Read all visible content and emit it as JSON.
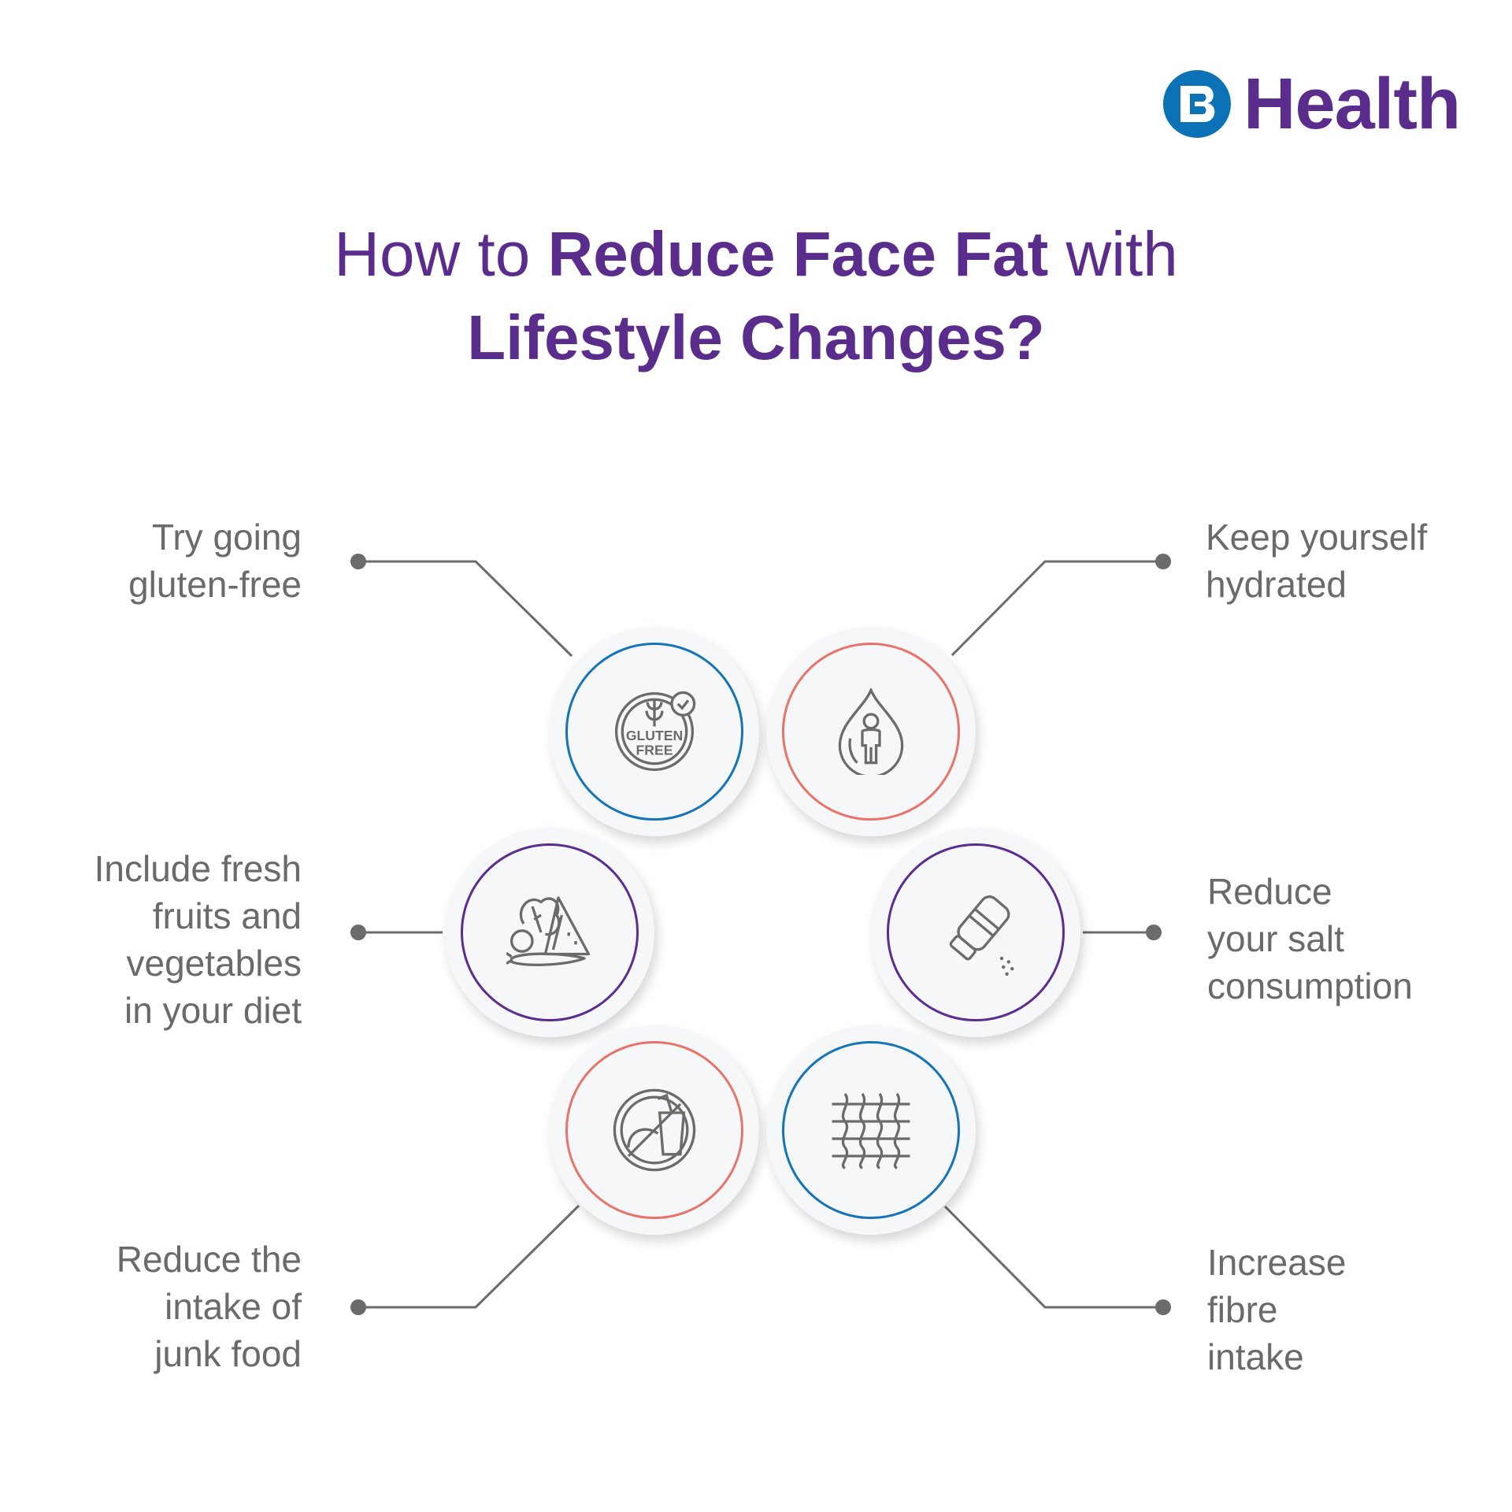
{
  "brand": {
    "name": "Health",
    "mark_color": "#0a72b5",
    "text_color": "#5a2d8d"
  },
  "title": {
    "part1": "How to ",
    "part2": "Reduce Face Fat",
    "part3": " with",
    "line2": "Lifestyle Changes?",
    "color": "#5a2d8d"
  },
  "colors": {
    "blue": "#1574b8",
    "salmon": "#e8736b",
    "purple": "#5b2d8e",
    "text": "#6a6a6a",
    "line": "#6b6b6b"
  },
  "tips": [
    {
      "id": "gluten",
      "lines": [
        "Try going",
        "gluten-free"
      ],
      "icon": "gluten-free-icon",
      "icon_text": [
        "GLUTEN",
        "FREE"
      ],
      "ring": "blue"
    },
    {
      "id": "hydrated",
      "lines": [
        "Keep yourself",
        "hydrated"
      ],
      "icon": "water-drop-person-icon",
      "ring": "salmon"
    },
    {
      "id": "fruits",
      "lines": [
        "Include fresh",
        "fruits and",
        "vegetables",
        "in your diet"
      ],
      "icon": "fruits-vegetables-icon",
      "ring": "purple"
    },
    {
      "id": "salt",
      "lines": [
        "Reduce",
        "your salt",
        "consumption"
      ],
      "icon": "salt-shaker-icon",
      "ring": "purple"
    },
    {
      "id": "junk",
      "lines": [
        "Reduce the",
        "intake of",
        "junk food"
      ],
      "icon": "no-junk-food-icon",
      "ring": "salmon"
    },
    {
      "id": "fibre",
      "lines": [
        "Increase",
        "fibre",
        "intake"
      ],
      "icon": "fibre-icon",
      "ring": "blue"
    }
  ]
}
